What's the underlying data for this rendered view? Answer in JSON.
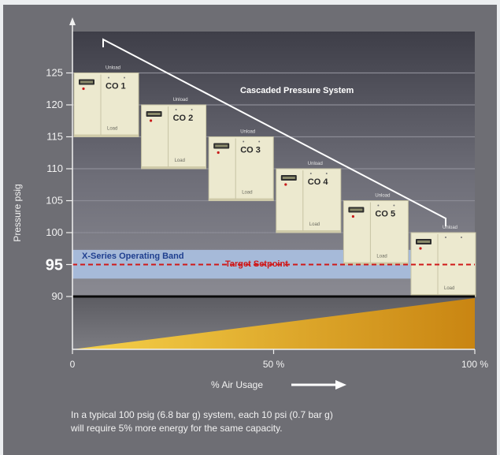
{
  "colors": {
    "background": "#6e6e74",
    "band": "#a9bfe0",
    "band_text": "#1f3f8f",
    "target_line": "#d01818",
    "energy_gradient_start": "#f6d24a",
    "energy_gradient_end": "#c98512",
    "unit_body": "#ece9cf"
  },
  "chart_data": {
    "type": "diagram",
    "ylabel": "Pressure psig",
    "xlabel": "% Air Usage",
    "y_ticks": [
      90,
      95,
      100,
      105,
      110,
      115,
      120,
      125
    ],
    "x_ticks": [
      "0",
      "50 %",
      "100 %"
    ],
    "ylim": [
      82,
      130
    ],
    "xlim": [
      0,
      100
    ],
    "operating_band": {
      "label": "X-Series Operating Band",
      "low": 92.8,
      "high": 97.3
    },
    "target_setpoint": {
      "label": "Target Setpoint",
      "value": 95
    },
    "cascade": {
      "label": "Cascaded Pressure System"
    },
    "compressors": [
      {
        "name": "CO 1",
        "unload_label": "Unload",
        "load_label": "Load",
        "unload": 125,
        "load": 115
      },
      {
        "name": "CO 2",
        "unload_label": "Unload",
        "load_label": "Load",
        "unload": 120,
        "load": 110
      },
      {
        "name": "CO 3",
        "unload_label": "Unload",
        "load_label": "Load",
        "unload": 115,
        "load": 105
      },
      {
        "name": "CO 4",
        "unload_label": "Unload",
        "load_label": "Load",
        "unload": 110,
        "load": 100
      },
      {
        "name": "CO 5",
        "unload_label": "Unload",
        "load_label": "Load",
        "unload": 105,
        "load": 95
      },
      {
        "name": "",
        "unload_label": "Unload",
        "load_label": "Load",
        "unload": 100,
        "load": 90
      }
    ],
    "energy_wedge": {
      "from_percent": 0,
      "to_percent": 100
    },
    "grid": true
  },
  "caption": {
    "line1": "In a typical 100 psig (6.8 bar g) system, each 10 psi (0.7 bar g)",
    "line2": "will require 5% more energy for the same capacity."
  }
}
